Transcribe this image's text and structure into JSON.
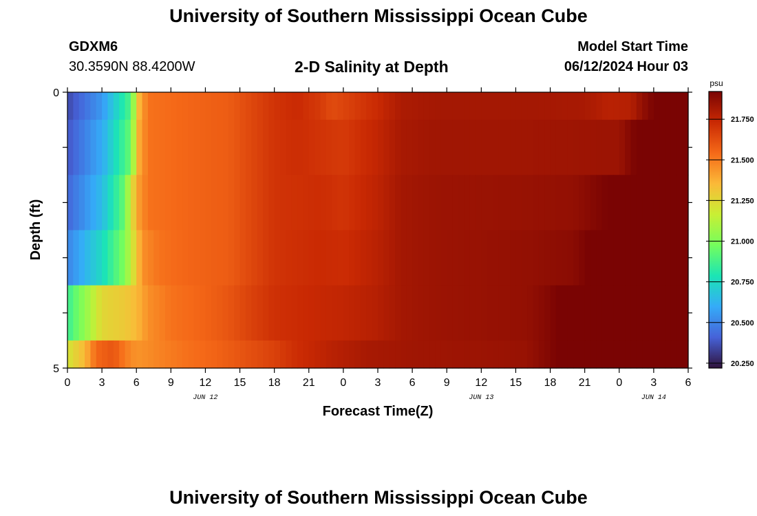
{
  "header": {
    "title": "University of Southern Mississippi Ocean Cube",
    "station": "GDXM6",
    "coords": "30.3590N  88.4200W",
    "subtitle": "2-D Salinity at Depth",
    "start_label": "Model Start Time",
    "start_value": "06/12/2024 Hour 03"
  },
  "footer": {
    "title": "University of Southern Mississippi Ocean Cube"
  },
  "chart_data": {
    "type": "heatmap",
    "title": "2-D Salinity at Depth",
    "xlabel": "Forecast Time(Z)",
    "ylabel": "Depth (ft)",
    "x_hours": [
      0,
      54
    ],
    "x_ticks": [
      {
        "h": 0,
        "label": "0"
      },
      {
        "h": 3,
        "label": "3"
      },
      {
        "h": 6,
        "label": "6"
      },
      {
        "h": 9,
        "label": "9"
      },
      {
        "h": 12,
        "label": "12"
      },
      {
        "h": 15,
        "label": "15"
      },
      {
        "h": 18,
        "label": "18"
      },
      {
        "h": 21,
        "label": "21"
      },
      {
        "h": 24,
        "label": "0"
      },
      {
        "h": 27,
        "label": "3"
      },
      {
        "h": 30,
        "label": "6"
      },
      {
        "h": 33,
        "label": "9"
      },
      {
        "h": 36,
        "label": "12"
      },
      {
        "h": 39,
        "label": "15"
      },
      {
        "h": 42,
        "label": "18"
      },
      {
        "h": 45,
        "label": "21"
      },
      {
        "h": 48,
        "label": "0"
      },
      {
        "h": 51,
        "label": "3"
      },
      {
        "h": 54,
        "label": "6"
      }
    ],
    "date_labels": [
      {
        "h": 12,
        "label": "JUN 12"
      },
      {
        "h": 36,
        "label": "JUN 13"
      },
      {
        "h": 51,
        "label": "JUN 14"
      }
    ],
    "depth_range": [
      0,
      5
    ],
    "y_tick_labels": [
      {
        "d": 0,
        "label": "0"
      },
      {
        "d": 5,
        "label": "5"
      }
    ],
    "depth_rows": [
      0,
      1,
      2,
      3,
      4,
      5
    ],
    "colorbar": {
      "unit": "psu",
      "min": 20.22,
      "max": 21.92,
      "ticks": [
        "20.250",
        "20.500",
        "20.750",
        "21.000",
        "21.250",
        "21.500",
        "21.750"
      ],
      "colors": [
        "#30123b",
        "#4662d8",
        "#35abf8",
        "#1be5b5",
        "#74fe5d",
        "#c9ef34",
        "#fbb938",
        "#f56918",
        "#c92903",
        "#7a0403"
      ]
    },
    "profiles": [
      {
        "depth": 0,
        "points": [
          [
            0,
            20.35
          ],
          [
            3,
            20.55
          ],
          [
            5.5,
            20.9
          ],
          [
            6.2,
            21.35
          ],
          [
            7,
            21.52
          ],
          [
            10,
            21.55
          ],
          [
            14,
            21.58
          ],
          [
            16,
            21.64
          ],
          [
            18,
            21.7
          ],
          [
            20,
            21.73
          ],
          [
            22,
            21.68
          ],
          [
            23,
            21.63
          ],
          [
            24,
            21.65
          ],
          [
            27,
            21.73
          ],
          [
            29,
            21.8
          ],
          [
            32,
            21.82
          ],
          [
            40,
            21.82
          ],
          [
            45,
            21.81
          ],
          [
            47,
            21.77
          ],
          [
            49,
            21.78
          ],
          [
            50,
            21.86
          ],
          [
            51.5,
            21.95
          ],
          [
            53,
            22.02
          ],
          [
            54,
            22.06
          ]
        ]
      },
      {
        "depth": 1,
        "points": [
          [
            0,
            20.38
          ],
          [
            3,
            20.6
          ],
          [
            5.5,
            20.95
          ],
          [
            6.2,
            21.38
          ],
          [
            7,
            21.52
          ],
          [
            10,
            21.55
          ],
          [
            14,
            21.58
          ],
          [
            16,
            21.64
          ],
          [
            18,
            21.7
          ],
          [
            20,
            21.72
          ],
          [
            22,
            21.7
          ],
          [
            24,
            21.68
          ],
          [
            27,
            21.75
          ],
          [
            29,
            21.81
          ],
          [
            32,
            21.83
          ],
          [
            40,
            21.83
          ],
          [
            48,
            21.84
          ],
          [
            49,
            21.9
          ],
          [
            51,
            21.98
          ],
          [
            54,
            22.12
          ]
        ]
      },
      {
        "depth": 2,
        "points": [
          [
            0,
            20.42
          ],
          [
            3,
            20.65
          ],
          [
            5,
            20.95
          ],
          [
            5.5,
            21.2
          ],
          [
            6.2,
            21.42
          ],
          [
            7,
            21.52
          ],
          [
            10,
            21.55
          ],
          [
            14,
            21.58
          ],
          [
            16,
            21.64
          ],
          [
            18,
            21.7
          ],
          [
            22,
            21.72
          ],
          [
            24,
            21.7
          ],
          [
            27,
            21.76
          ],
          [
            29,
            21.82
          ],
          [
            32,
            21.84
          ],
          [
            40,
            21.85
          ],
          [
            44,
            21.86
          ],
          [
            46,
            21.9
          ],
          [
            49,
            21.96
          ],
          [
            51,
            22.02
          ],
          [
            54,
            22.14
          ]
        ]
      },
      {
        "depth": 3,
        "points": [
          [
            0,
            20.5
          ],
          [
            3,
            20.75
          ],
          [
            5,
            21.0
          ],
          [
            6,
            21.3
          ],
          [
            6.5,
            21.45
          ],
          [
            8,
            21.52
          ],
          [
            10,
            21.55
          ],
          [
            14,
            21.58
          ],
          [
            16,
            21.64
          ],
          [
            18,
            21.7
          ],
          [
            22,
            21.73
          ],
          [
            24,
            21.72
          ],
          [
            27,
            21.77
          ],
          [
            29,
            21.82
          ],
          [
            32,
            21.84
          ],
          [
            40,
            21.86
          ],
          [
            44,
            21.88
          ],
          [
            46,
            21.95
          ],
          [
            49,
            22.02
          ],
          [
            51,
            22.05
          ],
          [
            54,
            22.2
          ]
        ]
      },
      {
        "depth": 4,
        "points": [
          [
            0,
            20.85
          ],
          [
            2,
            21.1
          ],
          [
            3,
            21.25
          ],
          [
            5,
            21.3
          ],
          [
            6,
            21.35
          ],
          [
            7,
            21.45
          ],
          [
            9,
            21.52
          ],
          [
            12,
            21.56
          ],
          [
            14,
            21.6
          ],
          [
            16,
            21.66
          ],
          [
            18,
            21.71
          ],
          [
            22,
            21.74
          ],
          [
            24,
            21.75
          ],
          [
            27,
            21.78
          ],
          [
            29,
            21.82
          ],
          [
            32,
            21.84
          ],
          [
            40,
            21.86
          ],
          [
            42,
            21.9
          ],
          [
            44,
            21.96
          ],
          [
            47,
            22.05
          ],
          [
            50,
            22.1
          ],
          [
            52,
            22.18
          ],
          [
            54,
            22.22
          ]
        ]
      },
      {
        "depth": 5,
        "points": [
          [
            0,
            21.2
          ],
          [
            1.5,
            21.35
          ],
          [
            2.5,
            21.55
          ],
          [
            4,
            21.6
          ],
          [
            5,
            21.5
          ],
          [
            6,
            21.44
          ],
          [
            8,
            21.48
          ],
          [
            10,
            21.52
          ],
          [
            13,
            21.56
          ],
          [
            16,
            21.62
          ],
          [
            18,
            21.66
          ],
          [
            20,
            21.72
          ],
          [
            23,
            21.77
          ],
          [
            26,
            21.81
          ],
          [
            30,
            21.83
          ],
          [
            36,
            21.84
          ],
          [
            40,
            21.85
          ],
          [
            43,
            21.93
          ],
          [
            46,
            22.02
          ],
          [
            49,
            22.12
          ],
          [
            51,
            22.2
          ],
          [
            54,
            22.32
          ]
        ]
      }
    ]
  }
}
